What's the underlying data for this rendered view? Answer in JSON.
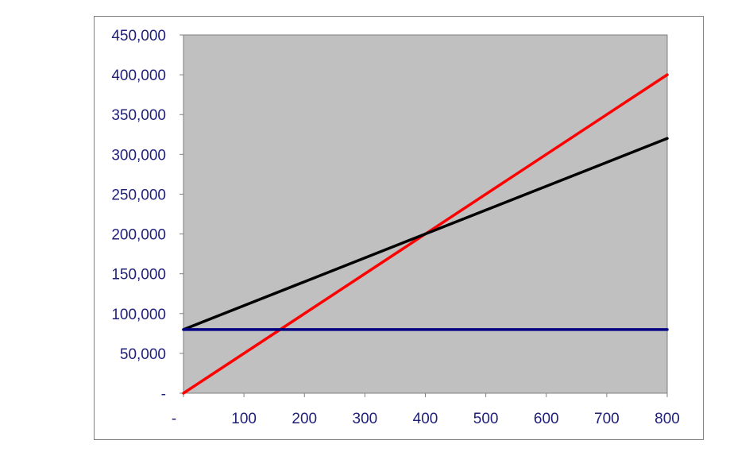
{
  "chart_data": {
    "type": "line",
    "title": "",
    "xlabel": "",
    "ylabel": "",
    "xlim": [
      0,
      800
    ],
    "ylim": [
      0,
      450000
    ],
    "x_ticks": [
      0,
      100,
      200,
      300,
      400,
      500,
      600,
      700,
      800
    ],
    "x_tick_labels": [
      "-",
      "100",
      "200",
      "300",
      "400",
      "500",
      "600",
      "700",
      "800"
    ],
    "y_ticks": [
      0,
      50000,
      100000,
      150000,
      200000,
      250000,
      300000,
      350000,
      400000,
      450000
    ],
    "y_tick_labels": [
      "-",
      "50,000",
      "100,000",
      "150,000",
      "200,000",
      "250,000",
      "300,000",
      "350,000",
      "400,000",
      "450,000"
    ],
    "grid": false,
    "legend": "none",
    "colors": {
      "plot_background": "#c0c0c0",
      "tick_label": "#1f1f7a",
      "axis": "#7f7f7f"
    },
    "series": [
      {
        "color": "#ff0000",
        "x": [
          0,
          800
        ],
        "y": [
          0,
          400000
        ]
      },
      {
        "color": "#000000",
        "x": [
          0,
          800
        ],
        "y": [
          80000,
          320000
        ]
      },
      {
        "color": "#000080",
        "x": [
          0,
          800
        ],
        "y": [
          80000,
          80000
        ]
      }
    ]
  }
}
